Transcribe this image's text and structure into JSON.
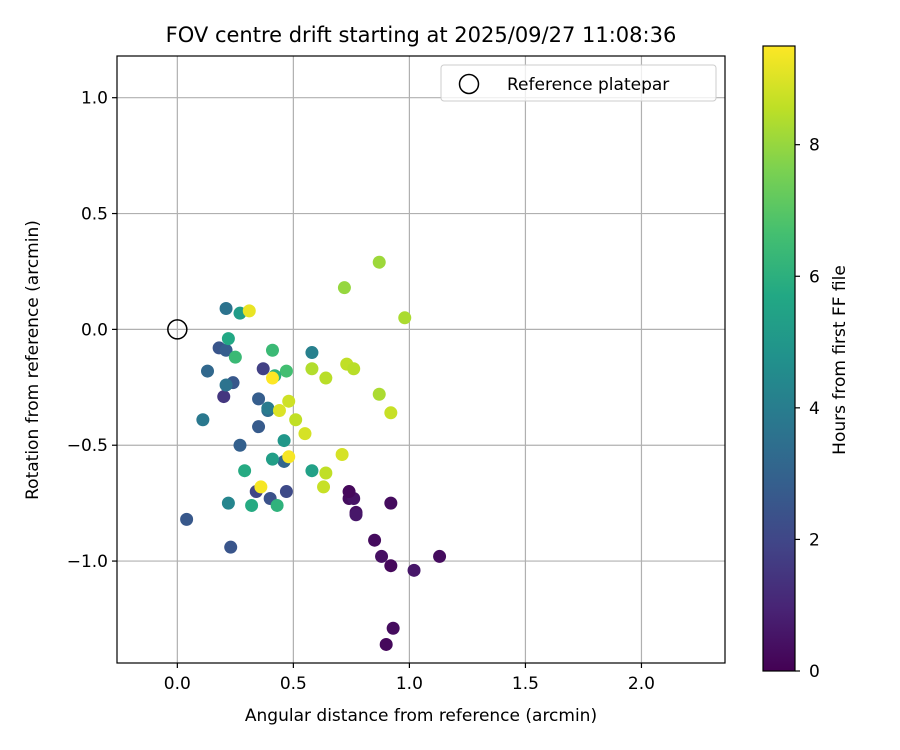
{
  "chart_data": {
    "type": "scatter",
    "title": "FOV centre drift starting at 2025/09/27 11:08:36",
    "xlabel": "Angular distance from reference (arcmin)",
    "ylabel": "Rotation from reference (arcmin)",
    "xlim": [
      -0.26,
      2.36
    ],
    "ylim": [
      -1.44,
      1.18
    ],
    "xticks": [
      0.0,
      0.5,
      1.0,
      1.5,
      2.0
    ],
    "xtick_labels": [
      "0.0",
      "0.5",
      "1.0",
      "1.5",
      "2.0"
    ],
    "yticks": [
      -1.0,
      -0.5,
      0.0,
      0.5,
      1.0
    ],
    "ytick_labels": [
      "−1.0",
      "−0.5",
      "0.0",
      "0.5",
      "1.0"
    ],
    "grid": true,
    "legend": {
      "location": "top-right",
      "entries": [
        "Reference platepar"
      ]
    },
    "reference_point": {
      "x": 0.0,
      "y": 0.0,
      "label": "Reference platepar"
    },
    "colorbar": {
      "label": "Hours from first FF file",
      "range": [
        0,
        9.5
      ],
      "ticks": [
        0,
        2,
        4,
        6,
        8
      ],
      "tick_labels": [
        "0",
        "2",
        "4",
        "6",
        "8"
      ],
      "colormap": "viridis",
      "colors": [
        "#440154",
        "#482475",
        "#414487",
        "#355f8d",
        "#2a788e",
        "#21918c",
        "#22a884",
        "#44bf70",
        "#7ad151",
        "#bddf26",
        "#fde725"
      ]
    },
    "series": [
      {
        "name": "FOV centre",
        "points": [
          {
            "x": 0.9,
            "y": -1.36,
            "hours": 0.2
          },
          {
            "x": 0.93,
            "y": -1.29,
            "hours": 0.3
          },
          {
            "x": 0.92,
            "y": -1.02,
            "hours": 0.2
          },
          {
            "x": 1.02,
            "y": -1.04,
            "hours": 0.6
          },
          {
            "x": 1.13,
            "y": -0.98,
            "hours": 0.3
          },
          {
            "x": 0.88,
            "y": -0.98,
            "hours": 0.4
          },
          {
            "x": 0.85,
            "y": -0.91,
            "hours": 0.3
          },
          {
            "x": 0.92,
            "y": -0.75,
            "hours": 0.3
          },
          {
            "x": 0.77,
            "y": -0.79,
            "hours": 0.4
          },
          {
            "x": 0.74,
            "y": -0.73,
            "hours": 0.3
          },
          {
            "x": 0.76,
            "y": -0.73,
            "hours": 0.5
          },
          {
            "x": 0.74,
            "y": -0.7,
            "hours": 0.2
          },
          {
            "x": 0.77,
            "y": -0.8,
            "hours": 0.6
          },
          {
            "x": 0.2,
            "y": -0.29,
            "hours": 1.5
          },
          {
            "x": 0.37,
            "y": -0.17,
            "hours": 1.8
          },
          {
            "x": 0.34,
            "y": -0.7,
            "hours": 1.9
          },
          {
            "x": 0.47,
            "y": -0.7,
            "hours": 2.1
          },
          {
            "x": 0.4,
            "y": -0.73,
            "hours": 2.4
          },
          {
            "x": 0.04,
            "y": -0.82,
            "hours": 2.6
          },
          {
            "x": 0.23,
            "y": -0.94,
            "hours": 2.5
          },
          {
            "x": 0.35,
            "y": -0.42,
            "hours": 2.7
          },
          {
            "x": 0.27,
            "y": -0.5,
            "hours": 2.9
          },
          {
            "x": 0.35,
            "y": -0.3,
            "hours": 2.8
          },
          {
            "x": 0.24,
            "y": -0.23,
            "hours": 2.6
          },
          {
            "x": 0.18,
            "y": -0.08,
            "hours": 2.5
          },
          {
            "x": 0.21,
            "y": -0.09,
            "hours": 2.8
          },
          {
            "x": 0.13,
            "y": -0.18,
            "hours": 3.2
          },
          {
            "x": 0.46,
            "y": -0.57,
            "hours": 3.1
          },
          {
            "x": 0.39,
            "y": -0.35,
            "hours": 3.4
          },
          {
            "x": 0.21,
            "y": -0.24,
            "hours": 3.6
          },
          {
            "x": 0.21,
            "y": 0.09,
            "hours": 3.6
          },
          {
            "x": 0.11,
            "y": -0.39,
            "hours": 3.8
          },
          {
            "x": 0.39,
            "y": -0.34,
            "hours": 3.9
          },
          {
            "x": 0.58,
            "y": -0.1,
            "hours": 4.1
          },
          {
            "x": 0.22,
            "y": -0.75,
            "hours": 4.3
          },
          {
            "x": 0.27,
            "y": 0.07,
            "hours": 5.2
          },
          {
            "x": 0.46,
            "y": -0.48,
            "hours": 5.0
          },
          {
            "x": 0.41,
            "y": -0.56,
            "hours": 5.3
          },
          {
            "x": 0.58,
            "y": -0.61,
            "hours": 5.4
          },
          {
            "x": 0.22,
            "y": -0.04,
            "hours": 5.7
          },
          {
            "x": 0.29,
            "y": -0.61,
            "hours": 5.8
          },
          {
            "x": 0.32,
            "y": -0.76,
            "hours": 5.8
          },
          {
            "x": 0.43,
            "y": -0.76,
            "hours": 6.1
          },
          {
            "x": 0.25,
            "y": -0.12,
            "hours": 6.4
          },
          {
            "x": 0.41,
            "y": -0.09,
            "hours": 6.4
          },
          {
            "x": 0.47,
            "y": -0.18,
            "hours": 6.6
          },
          {
            "x": 0.42,
            "y": -0.2,
            "hours": 6.0
          },
          {
            "x": 0.72,
            "y": 0.18,
            "hours": 8.0
          },
          {
            "x": 0.87,
            "y": 0.29,
            "hours": 8.1
          },
          {
            "x": 0.98,
            "y": 0.05,
            "hours": 8.3
          },
          {
            "x": 0.58,
            "y": -0.17,
            "hours": 8.4
          },
          {
            "x": 0.64,
            "y": -0.21,
            "hours": 8.5
          },
          {
            "x": 0.73,
            "y": -0.15,
            "hours": 8.6
          },
          {
            "x": 0.76,
            "y": -0.17,
            "hours": 8.5
          },
          {
            "x": 0.87,
            "y": -0.28,
            "hours": 8.3
          },
          {
            "x": 0.92,
            "y": -0.36,
            "hours": 8.7
          },
          {
            "x": 0.51,
            "y": -0.39,
            "hours": 8.6
          },
          {
            "x": 0.48,
            "y": -0.31,
            "hours": 8.8
          },
          {
            "x": 0.44,
            "y": -0.35,
            "hours": 9.0
          },
          {
            "x": 0.55,
            "y": -0.45,
            "hours": 8.9
          },
          {
            "x": 0.71,
            "y": -0.54,
            "hours": 8.9
          },
          {
            "x": 0.64,
            "y": -0.62,
            "hours": 8.6
          },
          {
            "x": 0.63,
            "y": -0.68,
            "hours": 8.7
          },
          {
            "x": 0.31,
            "y": 0.08,
            "hours": 9.2
          },
          {
            "x": 0.41,
            "y": -0.21,
            "hours": 9.5
          },
          {
            "x": 0.48,
            "y": -0.55,
            "hours": 9.4
          },
          {
            "x": 0.36,
            "y": -0.68,
            "hours": 9.4
          }
        ]
      }
    ]
  }
}
